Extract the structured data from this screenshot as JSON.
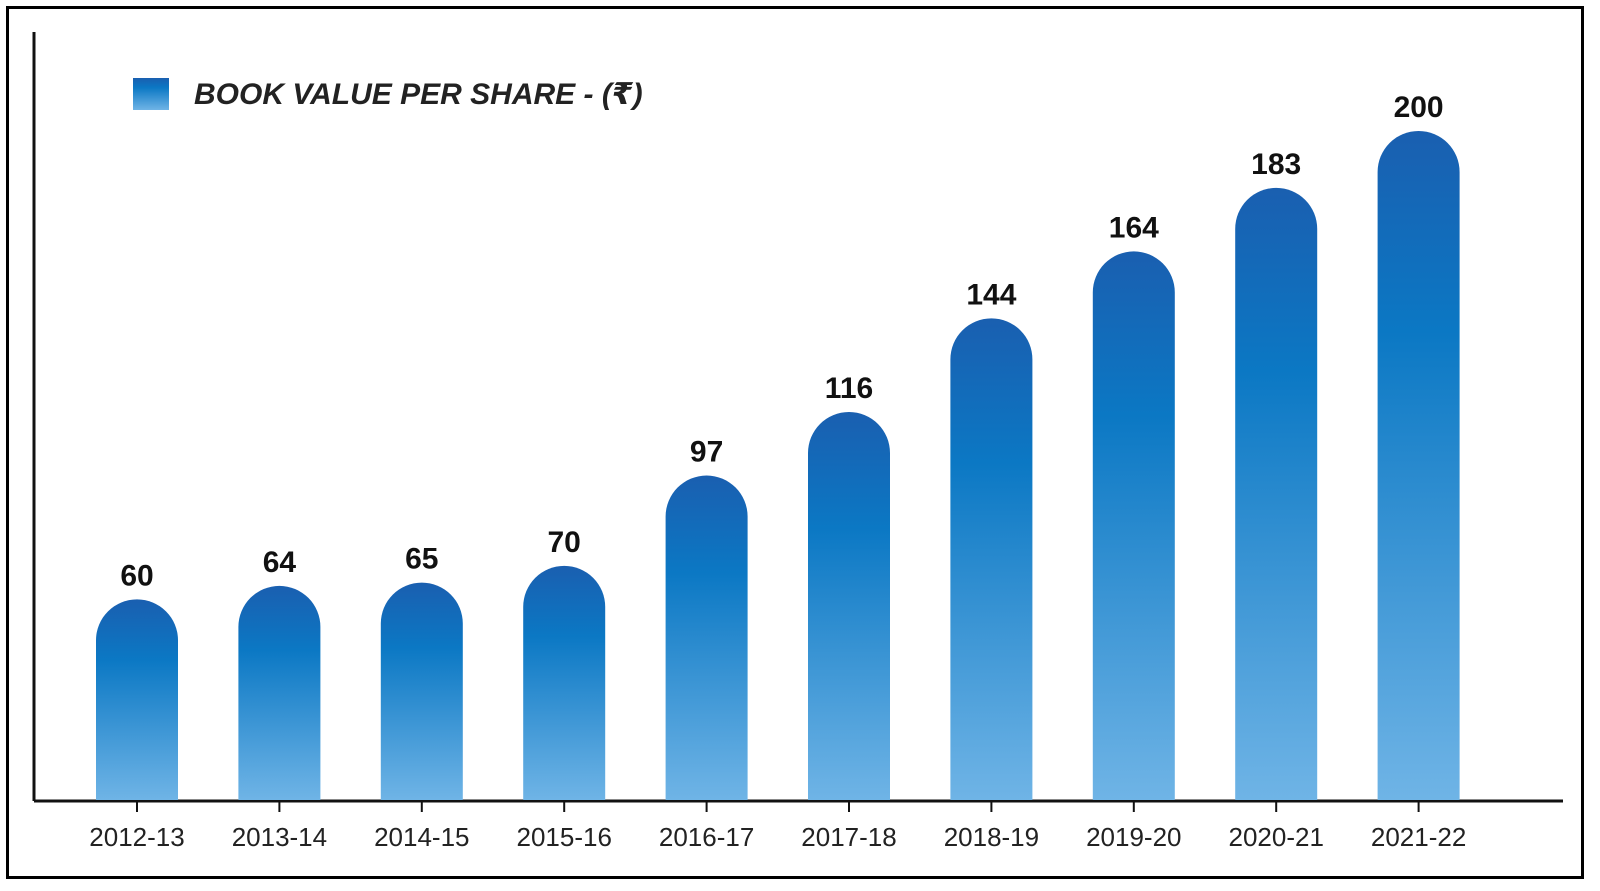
{
  "colors": {
    "bar_top": "#1a5fb0",
    "bar_mid": "#0b78c4",
    "bar_bottom": "#6fb4e6",
    "axis": "#111111"
  },
  "chart_data": {
    "type": "bar",
    "legend": {
      "label": "BOOK VALUE PER SHARE - (₹)",
      "placement": "top-left"
    },
    "categories": [
      "2012-13",
      "2013-14",
      "2014-15",
      "2015-16",
      "2016-17",
      "2017-18",
      "2018-19",
      "2019-20",
      "2020-21",
      "2021-22"
    ],
    "series": [
      {
        "name": "BOOK VALUE PER SHARE - (₹)",
        "values": [
          60,
          64,
          65,
          70,
          97,
          116,
          144,
          164,
          183,
          200
        ]
      }
    ],
    "data_labels": [
      "60",
      "64",
      "65",
      "70",
      "97",
      "116",
      "144",
      "164",
      "183",
      "200"
    ],
    "ylim": [
      0,
      200
    ],
    "grid": false
  }
}
